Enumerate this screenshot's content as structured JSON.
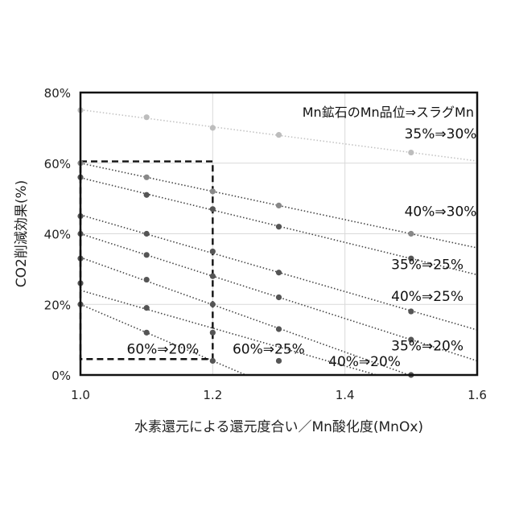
{
  "chart_data": {
    "type": "scatter",
    "xlabel": "水素還元による還元度合い／Mn酸化度(MnOx)",
    "ylabel": "CO2削減効果(%)",
    "xlim": [
      1.0,
      1.6
    ],
    "ylim": [
      0,
      80
    ],
    "grid": true,
    "x_ticks": [
      "1.0",
      "1.2",
      "1.4",
      "1.6"
    ],
    "y_ticks": [
      "0%",
      "20%",
      "40%",
      "60%",
      "80%"
    ],
    "legend_title": "Mn鉱石のMn品位⇒スラグMn",
    "series": [
      {
        "name": "35%⇒30%",
        "color": "#bdbdbd",
        "points": [
          [
            1.0,
            75
          ],
          [
            1.1,
            73
          ],
          [
            1.2,
            70
          ],
          [
            1.3,
            68
          ],
          [
            1.5,
            63
          ]
        ]
      },
      {
        "name": "40%⇒30%",
        "color": "#888888",
        "points": [
          [
            1.0,
            60
          ],
          [
            1.1,
            56
          ],
          [
            1.2,
            52
          ],
          [
            1.3,
            48
          ],
          [
            1.5,
            40
          ]
        ]
      },
      {
        "name": "35%⇒25%",
        "color": "#555555",
        "points": [
          [
            1.0,
            56
          ],
          [
            1.1,
            51
          ],
          [
            1.2,
            47
          ],
          [
            1.3,
            42
          ],
          [
            1.5,
            33
          ]
        ]
      },
      {
        "name": "40%⇒25%",
        "color": "#555555",
        "points": [
          [
            1.0,
            45
          ],
          [
            1.1,
            40
          ],
          [
            1.2,
            35
          ],
          [
            1.3,
            29
          ],
          [
            1.5,
            18
          ]
        ]
      },
      {
        "name": "35%⇒20%",
        "color": "#555555",
        "points": [
          [
            1.0,
            40
          ],
          [
            1.1,
            34
          ],
          [
            1.2,
            28
          ],
          [
            1.3,
            22
          ],
          [
            1.5,
            10
          ]
        ]
      },
      {
        "name": "60%⇒25%",
        "color": "#555555",
        "points": [
          [
            1.0,
            33
          ],
          [
            1.1,
            27
          ],
          [
            1.2,
            20
          ],
          [
            1.3,
            13
          ]
        ]
      },
      {
        "name": "40%⇒20%",
        "color": "#555555",
        "points": [
          [
            1.0,
            26
          ],
          [
            1.1,
            19
          ],
          [
            1.2,
            12
          ],
          [
            1.3,
            4
          ],
          [
            1.5,
            0
          ]
        ]
      },
      {
        "name": "60%⇒20%",
        "color": "#555555",
        "points": [
          [
            1.0,
            20
          ],
          [
            1.1,
            12
          ],
          [
            1.2,
            4
          ]
        ]
      }
    ],
    "annotations": [
      {
        "text": "35%⇒30%",
        "x": 1.49,
        "y": 67
      },
      {
        "text": "40%⇒30%",
        "x": 1.49,
        "y": 45
      },
      {
        "text": "35%⇒25%",
        "x": 1.47,
        "y": 30
      },
      {
        "text": "40%⇒25%",
        "x": 1.47,
        "y": 21
      },
      {
        "text": "35%⇒20%",
        "x": 1.47,
        "y": 7
      },
      {
        "text": "60%⇒25%",
        "x": 1.23,
        "y": 6
      },
      {
        "text": "40%⇒20%",
        "x": 1.375,
        "y": 2.5
      },
      {
        "text": "60%⇒20%",
        "x": 1.07,
        "y": 6
      }
    ],
    "highlight_box": {
      "x": [
        1.0,
        1.2
      ],
      "y": [
        4.5,
        60.5
      ]
    }
  }
}
